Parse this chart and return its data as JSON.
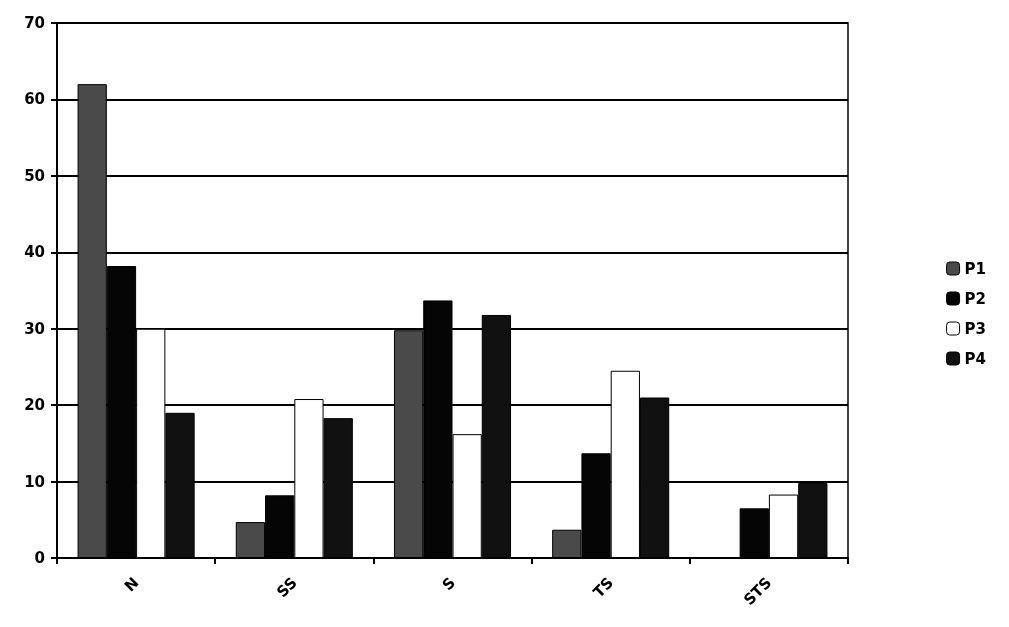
{
  "chart_data": {
    "type": "bar",
    "categories": [
      "N",
      "SS",
      "S",
      "TS",
      "STS"
    ],
    "series": [
      {
        "name": "P1",
        "color": "#4a4a4a",
        "values": [
          62,
          4.7,
          29.8,
          3.7,
          null
        ]
      },
      {
        "name": "P2",
        "color": "#050505",
        "values": [
          38.2,
          8.2,
          33.7,
          13.7,
          6.5
        ]
      },
      {
        "name": "P3",
        "color": "#ffffff",
        "values": [
          30,
          20.8,
          16.2,
          24.5,
          8.3
        ]
      },
      {
        "name": "P4",
        "color": "#111111",
        "values": [
          19,
          18.3,
          31.8,
          21,
          9.8
        ]
      }
    ],
    "ylim": [
      0,
      70
    ],
    "yticks": [
      0,
      10,
      20,
      30,
      40,
      50,
      60,
      70
    ],
    "grid": "y",
    "legend": "right"
  }
}
